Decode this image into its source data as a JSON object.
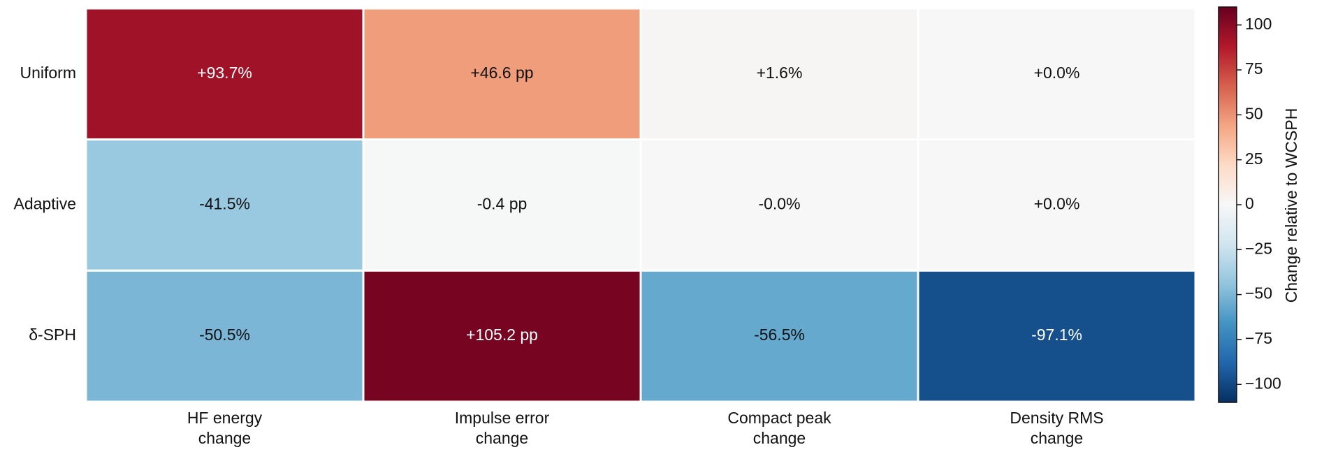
{
  "chart_data": {
    "type": "heatmap",
    "rows": [
      "Uniform",
      "Adaptive",
      "δ-SPH"
    ],
    "columns": [
      "HF energy\nchange",
      "Impulse error\nchange",
      "Compact peak\nchange",
      "Density RMS\nchange"
    ],
    "values": [
      [
        93.7,
        46.6,
        1.6,
        0.0
      ],
      [
        -41.5,
        -0.4,
        -0.0,
        0.0
      ],
      [
        -50.5,
        105.2,
        -56.5,
        -97.1
      ]
    ],
    "value_labels": [
      [
        "+93.7%",
        "+46.6 pp",
        "+1.6%",
        "+0.0%"
      ],
      [
        "-41.5%",
        "-0.4 pp",
        "-0.0%",
        "+0.0%"
      ],
      [
        "-50.5%",
        "+105.2 pp",
        "-56.5%",
        "-97.1%"
      ]
    ],
    "colormap": "RdBu_r",
    "colorbar_label": "Change relative to WCSPH",
    "clim": [
      -110,
      110
    ],
    "cticks": [
      {
        "value": -100,
        "label": "−100"
      },
      {
        "value": -75,
        "label": "−75"
      },
      {
        "value": -50,
        "label": "−50"
      },
      {
        "value": -25,
        "label": "−25"
      },
      0,
      25,
      50,
      75,
      100
    ]
  }
}
